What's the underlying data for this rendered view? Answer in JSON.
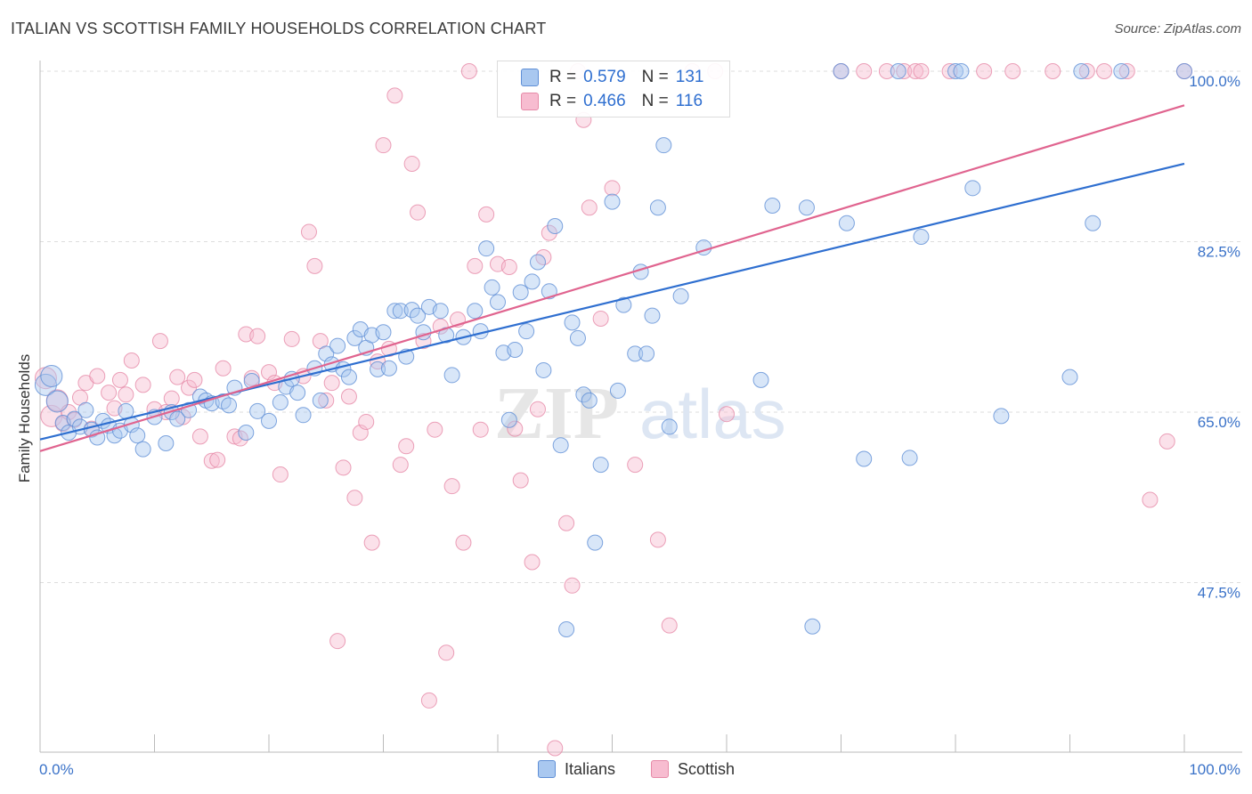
{
  "header": {
    "title": "ITALIAN VS SCOTTISH FAMILY HOUSEHOLDS CORRELATION CHART",
    "source": "Source: ZipAtlas.com"
  },
  "legend": {
    "italians": {
      "r_label": "R =",
      "r_value": "0.579",
      "n_label": "N =",
      "n_value": "131"
    },
    "scottish": {
      "r_label": "R =",
      "r_value": "0.466",
      "n_label": "N =",
      "n_value": "116"
    }
  },
  "colors": {
    "italians_fill": "#a9c8f0",
    "italians_stroke": "#5f8fd6",
    "italians_line": "#2f6fd0",
    "scottish_fill": "#f7bcd0",
    "scottish_stroke": "#e68aa8",
    "scottish_line": "#e0648f",
    "grid": "#dddddd",
    "tick_label": "#3a72c8"
  },
  "chart_data": {
    "type": "scatter",
    "title": "ITALIAN VS SCOTTISH FAMILY HOUSEHOLDS CORRELATION CHART",
    "xlabel": "",
    "ylabel": "Family Households",
    "xlim": [
      0,
      100
    ],
    "ylim": [
      28,
      102
    ],
    "x_tick_labels": [
      "0.0%",
      "100.0%"
    ],
    "y_ticks": [
      47.5,
      65.0,
      82.5,
      100.0
    ],
    "y_tick_labels": [
      "47.5%",
      "65.0%",
      "82.5%",
      "100.0%"
    ],
    "watermark": "ZIPatlas",
    "series": [
      {
        "name": "Italians",
        "trend": {
          "x": [
            0,
            100
          ],
          "y": [
            62.2,
            90.5
          ]
        },
        "points": [
          [
            0.5,
            67.8
          ],
          [
            1,
            68.7
          ],
          [
            1.5,
            66.1
          ],
          [
            2,
            63.9
          ],
          [
            2.5,
            62.9
          ],
          [
            3,
            64.3
          ],
          [
            3.5,
            63.5
          ],
          [
            4,
            65.2
          ],
          [
            4.5,
            63.2
          ],
          [
            5,
            62.4
          ],
          [
            5.5,
            64.1
          ],
          [
            6,
            63.6
          ],
          [
            6.5,
            62.6
          ],
          [
            7,
            63.1
          ],
          [
            7.5,
            65.1
          ],
          [
            8,
            63.7
          ],
          [
            8.5,
            62.6
          ],
          [
            9,
            61.2
          ],
          [
            10,
            64.5
          ],
          [
            11,
            61.8
          ],
          [
            11.5,
            65.0
          ],
          [
            12,
            64.3
          ],
          [
            13,
            65.2
          ],
          [
            14,
            66.6
          ],
          [
            14.5,
            66.2
          ],
          [
            15,
            65.9
          ],
          [
            16,
            66.1
          ],
          [
            16.5,
            65.7
          ],
          [
            17,
            67.5
          ],
          [
            18,
            62.9
          ],
          [
            18.5,
            68.2
          ],
          [
            19,
            65.1
          ],
          [
            20,
            64.1
          ],
          [
            21,
            66.0
          ],
          [
            21.5,
            67.6
          ],
          [
            22,
            68.4
          ],
          [
            22.5,
            67.0
          ],
          [
            23,
            64.7
          ],
          [
            24,
            69.5
          ],
          [
            24.5,
            66.2
          ],
          [
            25,
            71.0
          ],
          [
            25.5,
            69.9
          ],
          [
            26,
            71.8
          ],
          [
            26.5,
            69.4
          ],
          [
            27,
            68.6
          ],
          [
            27.5,
            72.6
          ],
          [
            28,
            73.5
          ],
          [
            28.5,
            71.6
          ],
          [
            29,
            72.9
          ],
          [
            29.5,
            69.4
          ],
          [
            30,
            73.2
          ],
          [
            30.5,
            69.5
          ],
          [
            31,
            75.4
          ],
          [
            31.5,
            75.4
          ],
          [
            32,
            70.7
          ],
          [
            32.5,
            75.5
          ],
          [
            33,
            74.9
          ],
          [
            33.5,
            73.2
          ],
          [
            34,
            75.8
          ],
          [
            35,
            75.4
          ],
          [
            35.5,
            72.9
          ],
          [
            36,
            68.8
          ],
          [
            37,
            72.7
          ],
          [
            38,
            75.4
          ],
          [
            38.5,
            73.3
          ],
          [
            39,
            81.8
          ],
          [
            39.5,
            77.8
          ],
          [
            40,
            76.3
          ],
          [
            40.5,
            71.1
          ],
          [
            41,
            64.2
          ],
          [
            41.5,
            71.4
          ],
          [
            42,
            77.3
          ],
          [
            42.5,
            73.3
          ],
          [
            43,
            78.4
          ],
          [
            43.5,
            80.4
          ],
          [
            44,
            69.3
          ],
          [
            44.5,
            77.4
          ],
          [
            45,
            84.1
          ],
          [
            45.5,
            61.6
          ],
          [
            46,
            42.7
          ],
          [
            46.5,
            74.2
          ],
          [
            47,
            72.6
          ],
          [
            47.5,
            66.8
          ],
          [
            48,
            66.2
          ],
          [
            48.5,
            51.6
          ],
          [
            49,
            59.6
          ],
          [
            50,
            86.6
          ],
          [
            50.5,
            67.2
          ],
          [
            51,
            76.0
          ],
          [
            52,
            71.0
          ],
          [
            52.5,
            79.4
          ],
          [
            53,
            71.0
          ],
          [
            53.5,
            74.9
          ],
          [
            54,
            86.0
          ],
          [
            54.5,
            92.4
          ],
          [
            55,
            63.5
          ],
          [
            56,
            76.9
          ],
          [
            58,
            81.9
          ],
          [
            63,
            68.3
          ],
          [
            64,
            86.2
          ],
          [
            67,
            86.0
          ],
          [
            67.5,
            43.0
          ],
          [
            70,
            100.0
          ],
          [
            70.5,
            84.4
          ],
          [
            72,
            60.2
          ],
          [
            75,
            100.0
          ],
          [
            76,
            60.3
          ],
          [
            77,
            83.0
          ],
          [
            80,
            100.0
          ],
          [
            80.5,
            100.0
          ],
          [
            81.5,
            88.0
          ],
          [
            84,
            64.6
          ],
          [
            90,
            68.6
          ],
          [
            91,
            100.0
          ],
          [
            92,
            84.4
          ],
          [
            94.5,
            100.0
          ],
          [
            100,
            100.0
          ]
        ]
      },
      {
        "name": "Scottish",
        "trend": {
          "x": [
            0,
            100
          ],
          "y": [
            61.0,
            96.5
          ]
        },
        "points": [
          [
            0.5,
            68.5
          ],
          [
            1,
            64.6
          ],
          [
            1.5,
            66.2
          ],
          [
            2,
            63.8
          ],
          [
            2.5,
            65.0
          ],
          [
            3,
            64.2
          ],
          [
            3.5,
            66.5
          ],
          [
            4,
            68.0
          ],
          [
            4.5,
            63.3
          ],
          [
            5,
            68.7
          ],
          [
            6,
            67.0
          ],
          [
            6.5,
            65.4
          ],
          [
            7,
            68.3
          ],
          [
            7.5,
            66.8
          ],
          [
            8,
            70.3
          ],
          [
            9,
            67.8
          ],
          [
            10,
            65.3
          ],
          [
            10.5,
            72.3
          ],
          [
            11,
            65.0
          ],
          [
            11.5,
            66.4
          ],
          [
            12,
            68.6
          ],
          [
            12.5,
            64.5
          ],
          [
            13,
            67.5
          ],
          [
            13.5,
            68.3
          ],
          [
            14,
            62.5
          ],
          [
            15,
            60.0
          ],
          [
            15.5,
            60.1
          ],
          [
            16,
            69.5
          ],
          [
            17,
            62.5
          ],
          [
            17.5,
            62.3
          ],
          [
            18,
            73.0
          ],
          [
            18.5,
            68.5
          ],
          [
            19,
            72.8
          ],
          [
            20,
            69.1
          ],
          [
            20.5,
            68.0
          ],
          [
            21,
            58.6
          ],
          [
            22,
            72.5
          ],
          [
            23,
            68.7
          ],
          [
            23.5,
            83.5
          ],
          [
            24,
            80.0
          ],
          [
            24.5,
            72.3
          ],
          [
            25,
            66.2
          ],
          [
            25.5,
            68.0
          ],
          [
            26,
            41.5
          ],
          [
            26.5,
            59.3
          ],
          [
            27,
            66.6
          ],
          [
            27.5,
            56.2
          ],
          [
            28,
            62.9
          ],
          [
            28.5,
            64.0
          ],
          [
            29,
            51.6
          ],
          [
            29.5,
            70.2
          ],
          [
            30,
            92.4
          ],
          [
            30.5,
            71.5
          ],
          [
            31,
            97.5
          ],
          [
            31.5,
            59.6
          ],
          [
            32,
            61.5
          ],
          [
            32.5,
            90.5
          ],
          [
            33,
            85.5
          ],
          [
            33.5,
            72.3
          ],
          [
            34,
            35.4
          ],
          [
            34.5,
            63.2
          ],
          [
            35,
            73.8
          ],
          [
            35.5,
            40.3
          ],
          [
            36,
            57.4
          ],
          [
            36.5,
            74.5
          ],
          [
            37,
            51.6
          ],
          [
            37.5,
            100.0
          ],
          [
            38,
            80.0
          ],
          [
            38.5,
            63.2
          ],
          [
            39,
            85.3
          ],
          [
            40,
            80.2
          ],
          [
            41,
            79.9
          ],
          [
            41.5,
            63.3
          ],
          [
            42,
            58.0
          ],
          [
            43,
            49.6
          ],
          [
            43.5,
            65.3
          ],
          [
            44,
            80.9
          ],
          [
            44.5,
            83.4
          ],
          [
            45,
            30.5
          ],
          [
            46,
            53.6
          ],
          [
            46.5,
            47.2
          ],
          [
            47,
            100.0
          ],
          [
            47.5,
            95.0
          ],
          [
            48,
            86.0
          ],
          [
            49,
            74.6
          ],
          [
            50,
            88.0
          ],
          [
            52,
            59.6
          ],
          [
            54,
            51.9
          ],
          [
            55,
            43.1
          ],
          [
            57,
            100.0
          ],
          [
            59,
            100.0
          ],
          [
            60,
            64.8
          ],
          [
            70,
            100.0
          ],
          [
            72,
            100.0
          ],
          [
            74,
            100.0
          ],
          [
            75.5,
            100.0
          ],
          [
            76.5,
            100.0
          ],
          [
            77,
            100.0
          ],
          [
            79.5,
            100.0
          ],
          [
            82.5,
            100.0
          ],
          [
            85,
            100.0
          ],
          [
            88.5,
            100.0
          ],
          [
            91.5,
            100.0
          ],
          [
            93,
            100.0
          ],
          [
            95,
            100.0
          ],
          [
            97,
            56.0
          ],
          [
            98.5,
            62.0
          ],
          [
            100,
            100.0
          ]
        ]
      }
    ]
  },
  "bottom_legend": {
    "italians": "Italians",
    "scottish": "Scottish"
  }
}
